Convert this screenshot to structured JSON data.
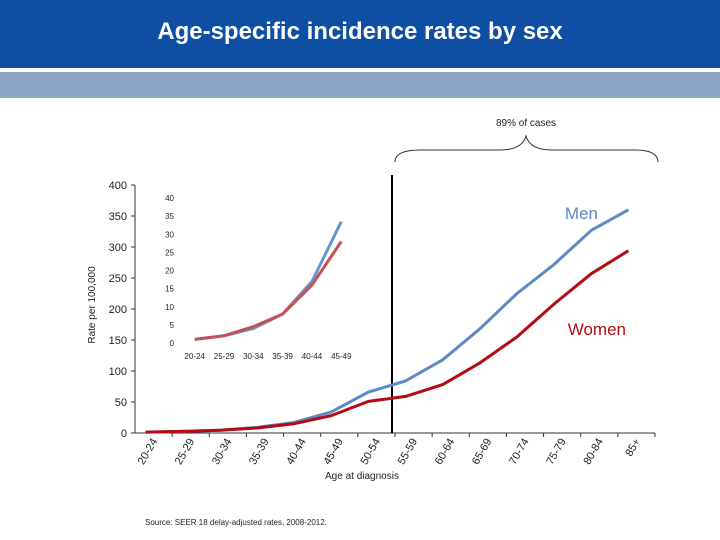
{
  "header": {
    "title": "Age-specific incidence rates by sex"
  },
  "brace_label": "89% of cases",
  "source": "Source: SEER 18 delay-adjusted rates, 2008-2012.",
  "colors": {
    "header": "#0e4fa3",
    "subbar": "#8ea4c4",
    "men": "#5b8ac4",
    "women": "#b40b12",
    "inset_men": "#6a95cc",
    "inset_women": "#c05353"
  },
  "chart_data": [
    {
      "type": "line",
      "categories": [
        "20-24",
        "25-29",
        "30-34",
        "35-39",
        "40-44",
        "45-49",
        "50-54",
        "55-59",
        "60-64",
        "65-69",
        "70-74",
        "75-79",
        "80-84",
        "85+"
      ],
      "ylabel": "Rate per 100,000",
      "xlabel": "Age at diagnosis",
      "ylim": [
        0,
        400
      ],
      "yticks": [
        0,
        50,
        100,
        150,
        200,
        250,
        300,
        350,
        400
      ],
      "series": [
        {
          "name": "Men",
          "values": [
            1.5,
            2.5,
            4.5,
            9,
            17,
            34,
            66,
            84,
            118,
            168,
            225,
            272,
            327,
            360
          ]
        },
        {
          "name": "Women",
          "values": [
            1.5,
            2.5,
            4.5,
            8,
            15,
            28,
            51,
            59,
            78,
            113,
            155,
            208,
            257,
            294
          ]
        }
      ],
      "divider_after": "50-54"
    },
    {
      "type": "line",
      "categories": [
        "20-24",
        "25-29",
        "30-34",
        "35-39",
        "40-44",
        "45-49"
      ],
      "ylim": [
        0,
        40
      ],
      "yticks": [
        0,
        5,
        10,
        15,
        20,
        25,
        30,
        35,
        40
      ],
      "series": [
        {
          "values": [
            1,
            2,
            4,
            8,
            17,
            33.5
          ]
        },
        {
          "values": [
            1,
            2,
            4.5,
            8,
            16,
            28
          ]
        }
      ]
    }
  ]
}
